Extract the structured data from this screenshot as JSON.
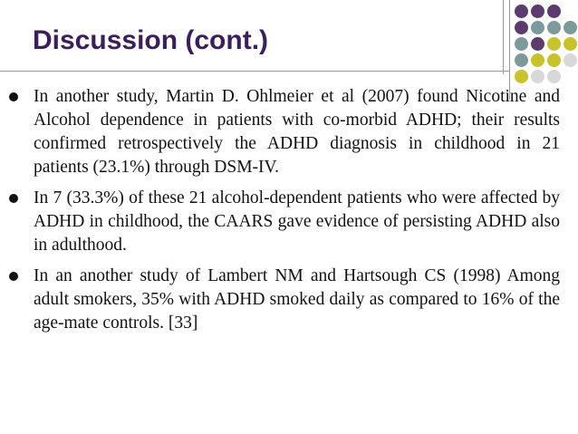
{
  "slide": {
    "title": "Discussion (cont.)",
    "bullets": [
      "In another study, Martin D. Ohlmeier et al (2007) found Nicotine and Alcohol dependence in patients with co-morbid ADHD; their results confirmed retrospectively the ADHD diagnosis in childhood in 21 patients (23.1%) through DSM-IV.",
      "In 7 (33.3%) of these 21 alcohol-dependent patients who were affected by ADHD in childhood, the CAARS gave evidence of persisting ADHD also in adulthood.",
      "In an another study of Lambert NM and Hartsough CS (1998) Among adult smokers, 35% with ADHD smoked daily as compared to 16% of the age-mate controls. [33]"
    ]
  },
  "decoration": {
    "dot_colors": {
      "purple": "#5c3b6e",
      "teal": "#7d9a9a",
      "olive": "#c8c32a",
      "light_gray": "#d8d8d8"
    }
  }
}
